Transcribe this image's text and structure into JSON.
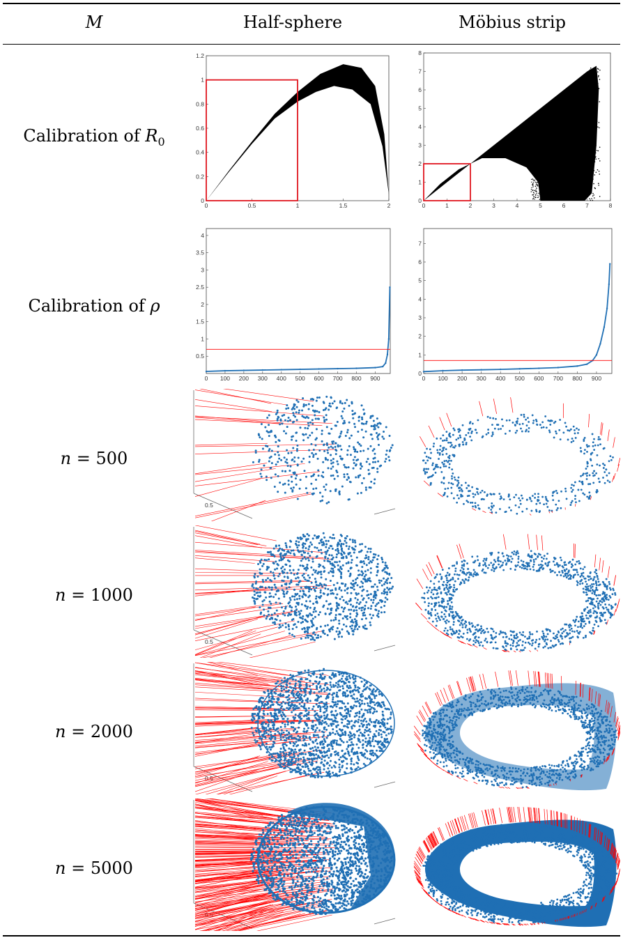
{
  "table": {
    "header": {
      "col_m": "M",
      "col_half": "Half-sphere",
      "col_mobius": "Möbius strip"
    },
    "rows": [
      {
        "label_pre": "Calibration of ",
        "label_var": "R",
        "label_sub": "0"
      },
      {
        "label_pre": "Calibration of ",
        "label_var": "ρ",
        "label_sub": ""
      },
      {
        "label_pre": "",
        "label_var": "n",
        "label_post": " = 500"
      },
      {
        "label_pre": "",
        "label_var": "n",
        "label_post": " = 1000"
      },
      {
        "label_pre": "",
        "label_var": "n",
        "label_post": " = 2000"
      },
      {
        "label_pre": "",
        "label_var": "n",
        "label_post": " = 5000"
      }
    ],
    "scatter_axis_tick": "0.5"
  },
  "colors": {
    "points": "#1f6fb4",
    "arrows": "#ff0000",
    "box": "#e0141e",
    "dense": "#000000"
  },
  "chart_data": [
    {
      "type": "scatter",
      "panel": "half-sphere-R0",
      "xlim": [
        0,
        2
      ],
      "ylim": [
        0,
        1.2
      ],
      "xticks": [
        "0",
        "0.5",
        "1",
        "1.5",
        "2"
      ],
      "yticks": [
        "0",
        "0.2",
        "0.4",
        "0.6",
        "0.8",
        "1",
        "1.2"
      ],
      "band_upper": [
        [
          0,
          0
        ],
        [
          0.25,
          0.25
        ],
        [
          0.5,
          0.49
        ],
        [
          0.75,
          0.72
        ],
        [
          1,
          0.9
        ],
        [
          1.25,
          1.05
        ],
        [
          1.5,
          1.13
        ],
        [
          1.7,
          1.1
        ],
        [
          1.85,
          0.95
        ],
        [
          1.95,
          0.55
        ],
        [
          2,
          0.05
        ]
      ],
      "band_lower": [
        [
          2,
          0.05
        ],
        [
          1.93,
          0.45
        ],
        [
          1.8,
          0.8
        ],
        [
          1.6,
          0.92
        ],
        [
          1.4,
          0.95
        ],
        [
          1.2,
          0.9
        ],
        [
          1,
          0.82
        ],
        [
          0.75,
          0.68
        ],
        [
          0.5,
          0.47
        ],
        [
          0.25,
          0.24
        ],
        [
          0,
          0
        ]
      ],
      "highlight_box": {
        "x0": 0,
        "y0": 0,
        "x1": 1,
        "y1": 1
      }
    },
    {
      "type": "scatter",
      "panel": "mobius-R0",
      "xlim": [
        0,
        8
      ],
      "ylim": [
        0,
        8
      ],
      "xticks": [
        "0",
        "1",
        "2",
        "3",
        "4",
        "5",
        "6",
        "7",
        "8"
      ],
      "yticks": [
        "0",
        "1",
        "2",
        "3",
        "4",
        "5",
        "6",
        "7",
        "8"
      ],
      "band_outline": [
        [
          0,
          0
        ],
        [
          1,
          1
        ],
        [
          2,
          2
        ],
        [
          3,
          3
        ],
        [
          4,
          4
        ],
        [
          5,
          5
        ],
        [
          6,
          6
        ],
        [
          7,
          7
        ],
        [
          7.4,
          7.3
        ],
        [
          7.5,
          6
        ],
        [
          7.4,
          3
        ],
        [
          7.2,
          0.4
        ],
        [
          6.9,
          0
        ],
        [
          5,
          0
        ],
        [
          4.9,
          1
        ],
        [
          4.4,
          1.8
        ],
        [
          3.5,
          2.3
        ],
        [
          2.5,
          2.3
        ],
        [
          1.5,
          1.7
        ],
        [
          0.7,
          0.9
        ],
        [
          0,
          0
        ]
      ],
      "highlight_box": {
        "x0": 0,
        "y0": 0,
        "x1": 2,
        "y1": 2
      }
    },
    {
      "type": "line",
      "panel": "half-sphere-rho",
      "xlim": [
        0,
        980
      ],
      "ylim": [
        0,
        4.2
      ],
      "xticks": [
        "0",
        "100",
        "200",
        "300",
        "400",
        "500",
        "600",
        "700",
        "800",
        "900"
      ],
      "yticks": [
        "0.5",
        "1",
        "1.5",
        "2",
        "2.5",
        "3",
        "3.5",
        "4"
      ],
      "series": [
        {
          "x": [
            0,
            100,
            200,
            300,
            400,
            500,
            600,
            700,
            800,
            900,
            940,
            955,
            965,
            972,
            978
          ],
          "y": [
            0.06,
            0.08,
            0.09,
            0.1,
            0.11,
            0.12,
            0.13,
            0.14,
            0.15,
            0.17,
            0.2,
            0.3,
            0.55,
            1.0,
            2.5
          ]
        }
      ],
      "threshold": 0.7
    },
    {
      "type": "line",
      "panel": "mobius-rho",
      "xlim": [
        0,
        980
      ],
      "ylim": [
        0,
        7.8
      ],
      "xticks": [
        "0",
        "100",
        "200",
        "300",
        "400",
        "500",
        "600",
        "700",
        "800",
        "900"
      ],
      "yticks": [
        "0",
        "1",
        "2",
        "3",
        "4",
        "5",
        "6",
        "7"
      ],
      "series": [
        {
          "x": [
            0,
            100,
            200,
            300,
            400,
            500,
            600,
            700,
            800,
            850,
            880,
            900,
            920,
            940,
            955,
            965,
            970
          ],
          "y": [
            0.1,
            0.15,
            0.18,
            0.2,
            0.22,
            0.25,
            0.28,
            0.32,
            0.4,
            0.5,
            0.7,
            1.0,
            1.6,
            2.5,
            3.5,
            4.8,
            5.9
          ]
        }
      ],
      "threshold": 0.7
    }
  ]
}
